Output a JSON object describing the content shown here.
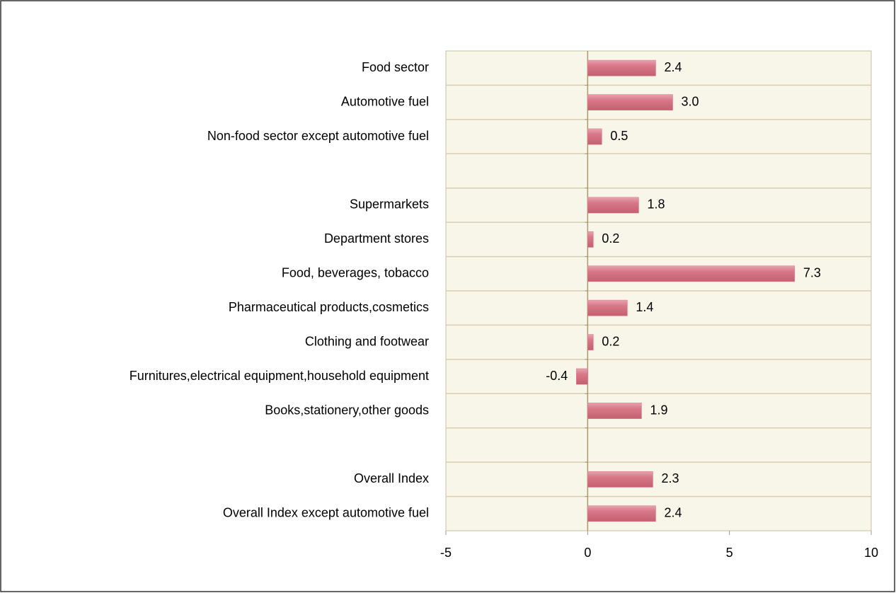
{
  "chart_data": {
    "type": "barh",
    "categories": [
      "Food sector",
      "Automotive fuel",
      "Non-food sector except automotive fuel",
      null,
      "Supermarkets",
      "Department stores",
      "Food, beverages, tobacco",
      "Pharmaceutical products,cosmetics",
      "Clothing and footwear",
      "Furnitures,electrical equipment,household equipment",
      "Books,stationery,other goods",
      null,
      "Overall Index",
      "Overall Index except automotive fuel"
    ],
    "values": [
      2.4,
      3.0,
      0.5,
      null,
      1.8,
      0.2,
      7.3,
      1.4,
      0.2,
      -0.4,
      1.9,
      null,
      2.3,
      2.4
    ],
    "value_labels": [
      "2.4",
      "3.0",
      "0.5",
      null,
      "1.8",
      "0.2",
      "7.3",
      "1.4",
      "0.2",
      "-0.4",
      "1.9",
      null,
      "2.3",
      "2.4"
    ],
    "color": "#d9788a",
    "xlim": [
      -5,
      10
    ],
    "xticks": [
      -5,
      0,
      5,
      10
    ]
  }
}
